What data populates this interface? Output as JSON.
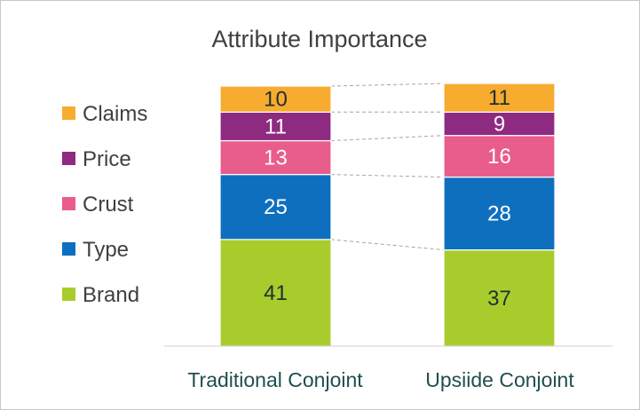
{
  "chart_data": {
    "type": "bar",
    "stacked": true,
    "title": "Attribute Importance",
    "categories": [
      "Traditional Conjoint",
      "Upsiide Conjoint"
    ],
    "series": [
      {
        "name": "Brand",
        "color": "#a9cc2d",
        "label_color": "#1f2f2f",
        "values": [
          41,
          37
        ]
      },
      {
        "name": "Type",
        "color": "#0f6fbf",
        "label_color": "#ffffff",
        "values": [
          25,
          28
        ]
      },
      {
        "name": "Crust",
        "color": "#e85d8c",
        "label_color": "#ffffff",
        "values": [
          13,
          16
        ]
      },
      {
        "name": "Price",
        "color": "#8e2a80",
        "label_color": "#ffffff",
        "values": [
          11,
          9
        ]
      },
      {
        "name": "Claims",
        "color": "#f7ab2f",
        "label_color": "#1f2f2f",
        "values": [
          10,
          11
        ]
      }
    ],
    "legend_order": [
      "Claims",
      "Price",
      "Crust",
      "Type",
      "Brand"
    ],
    "legend_position": "left",
    "connector_lines": true,
    "ylim": [
      0,
      100
    ],
    "grid": false
  }
}
